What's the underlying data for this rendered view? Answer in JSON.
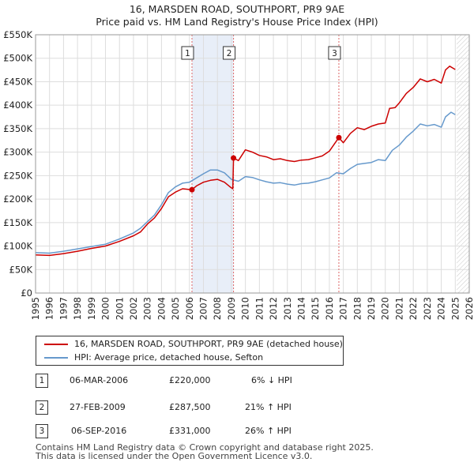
{
  "title_line1": "16, MARSDEN ROAD, SOUTHPORT, PR9 9AE",
  "title_line2": "Price paid vs. HM Land Registry's House Price Index (HPI)",
  "colors": {
    "property": "#cc0000",
    "hpi": "#6699cc",
    "shade": "#e8eef8",
    "grid": "#dddddd",
    "marker_line": "#dd6666"
  },
  "chart_data": {
    "type": "line",
    "xlim": [
      1995,
      2026
    ],
    "ylim": [
      0,
      550000
    ],
    "y_ticks": [
      0,
      50000,
      100000,
      150000,
      200000,
      250000,
      300000,
      350000,
      400000,
      450000,
      500000,
      550000
    ],
    "y_tick_labels": [
      "£0",
      "£50K",
      "£100K",
      "£150K",
      "£200K",
      "£250K",
      "£300K",
      "£350K",
      "£400K",
      "£450K",
      "£500K",
      "£550K"
    ],
    "x_ticks": [
      1995,
      1996,
      1997,
      1998,
      1999,
      2000,
      2001,
      2002,
      2003,
      2004,
      2005,
      2006,
      2007,
      2008,
      2009,
      2010,
      2011,
      2012,
      2013,
      2014,
      2015,
      2016,
      2017,
      2018,
      2019,
      2020,
      2021,
      2022,
      2023,
      2024,
      2025,
      2026
    ],
    "x_tick_labels": [
      "1995",
      "1996",
      "1997",
      "1998",
      "1999",
      "2000",
      "2001",
      "2002",
      "2003",
      "2004",
      "2005",
      "2006",
      "2007",
      "2008",
      "2009",
      "2010",
      "2011",
      "2012",
      "2013",
      "2014",
      "2015",
      "2016",
      "2017",
      "2018",
      "2019",
      "2020",
      "2021",
      "2022",
      "2023",
      "2024",
      "2025",
      "2026"
    ],
    "shaded_ranges": [
      [
        2006.18,
        2009.15
      ]
    ],
    "future_start": 2025.1,
    "series": [
      {
        "name": "16, MARSDEN ROAD, SOUTHPORT, PR9 9AE (detached house)",
        "color": "#cc0000",
        "points": [
          [
            1995.0,
            81000
          ],
          [
            1996.0,
            80000
          ],
          [
            1997.0,
            84000
          ],
          [
            1998.0,
            89000
          ],
          [
            1999.0,
            95000
          ],
          [
            2000.0,
            100000
          ],
          [
            2001.0,
            110000
          ],
          [
            2002.0,
            122000
          ],
          [
            2002.5,
            130000
          ],
          [
            2003.0,
            147000
          ],
          [
            2003.5,
            160000
          ],
          [
            2004.0,
            180000
          ],
          [
            2004.5,
            205000
          ],
          [
            2005.0,
            215000
          ],
          [
            2005.5,
            222000
          ],
          [
            2006.18,
            220000
          ],
          [
            2006.5,
            228000
          ],
          [
            2007.0,
            236000
          ],
          [
            2007.5,
            240000
          ],
          [
            2008.0,
            242000
          ],
          [
            2008.5,
            236000
          ],
          [
            2008.9,
            226000
          ],
          [
            2009.1,
            222000
          ],
          [
            2009.15,
            287500
          ],
          [
            2009.5,
            282000
          ],
          [
            2010.0,
            305000
          ],
          [
            2010.5,
            300000
          ],
          [
            2011.0,
            293000
          ],
          [
            2011.5,
            290000
          ],
          [
            2012.0,
            284000
          ],
          [
            2012.5,
            286000
          ],
          [
            2013.0,
            282000
          ],
          [
            2013.5,
            280000
          ],
          [
            2014.0,
            283000
          ],
          [
            2014.5,
            284000
          ],
          [
            2015.0,
            288000
          ],
          [
            2015.5,
            292000
          ],
          [
            2016.0,
            302000
          ],
          [
            2016.68,
            331000
          ],
          [
            2017.0,
            320000
          ],
          [
            2017.5,
            340000
          ],
          [
            2018.0,
            352000
          ],
          [
            2018.5,
            348000
          ],
          [
            2019.0,
            355000
          ],
          [
            2019.5,
            360000
          ],
          [
            2020.0,
            362000
          ],
          [
            2020.3,
            393000
          ],
          [
            2020.7,
            395000
          ],
          [
            2021.0,
            405000
          ],
          [
            2021.5,
            425000
          ],
          [
            2022.0,
            438000
          ],
          [
            2022.5,
            456000
          ],
          [
            2023.0,
            450000
          ],
          [
            2023.5,
            455000
          ],
          [
            2024.0,
            447000
          ],
          [
            2024.3,
            475000
          ],
          [
            2024.6,
            483000
          ],
          [
            2025.0,
            476000
          ]
        ]
      },
      {
        "name": "HPI: Average price, detached house, Sefton",
        "color": "#6699cc",
        "points": [
          [
            1995.0,
            86000
          ],
          [
            1996.0,
            85000
          ],
          [
            1997.0,
            89000
          ],
          [
            1998.0,
            94000
          ],
          [
            1999.0,
            99000
          ],
          [
            2000.0,
            104000
          ],
          [
            2001.0,
            115000
          ],
          [
            2002.0,
            128000
          ],
          [
            2002.5,
            138000
          ],
          [
            2003.0,
            152000
          ],
          [
            2003.5,
            166000
          ],
          [
            2004.0,
            188000
          ],
          [
            2004.5,
            214000
          ],
          [
            2005.0,
            226000
          ],
          [
            2005.5,
            234000
          ],
          [
            2006.0,
            236000
          ],
          [
            2006.5,
            245000
          ],
          [
            2007.0,
            254000
          ],
          [
            2007.5,
            262000
          ],
          [
            2008.0,
            262000
          ],
          [
            2008.5,
            256000
          ],
          [
            2009.0,
            242000
          ],
          [
            2009.5,
            238000
          ],
          [
            2010.0,
            248000
          ],
          [
            2010.5,
            246000
          ],
          [
            2011.0,
            241000
          ],
          [
            2011.5,
            237000
          ],
          [
            2012.0,
            234000
          ],
          [
            2012.5,
            235000
          ],
          [
            2013.0,
            232000
          ],
          [
            2013.5,
            230000
          ],
          [
            2014.0,
            233000
          ],
          [
            2014.5,
            234000
          ],
          [
            2015.0,
            237000
          ],
          [
            2015.5,
            241000
          ],
          [
            2016.0,
            245000
          ],
          [
            2016.5,
            256000
          ],
          [
            2017.0,
            254000
          ],
          [
            2017.5,
            265000
          ],
          [
            2018.0,
            274000
          ],
          [
            2018.5,
            276000
          ],
          [
            2019.0,
            278000
          ],
          [
            2019.5,
            284000
          ],
          [
            2020.0,
            282000
          ],
          [
            2020.5,
            304000
          ],
          [
            2021.0,
            315000
          ],
          [
            2021.5,
            332000
          ],
          [
            2022.0,
            345000
          ],
          [
            2022.5,
            360000
          ],
          [
            2023.0,
            356000
          ],
          [
            2023.5,
            359000
          ],
          [
            2024.0,
            353000
          ],
          [
            2024.3,
            375000
          ],
          [
            2024.7,
            385000
          ],
          [
            2025.0,
            380000
          ]
        ]
      }
    ],
    "sale_markers": [
      {
        "label": "1",
        "x": 2006.18,
        "y": 220000
      },
      {
        "label": "2",
        "x": 2009.15,
        "y": 287500
      },
      {
        "label": "3",
        "x": 2016.68,
        "y": 331000
      }
    ]
  },
  "legend": {
    "property": "16, MARSDEN ROAD, SOUTHPORT, PR9 9AE (detached house)",
    "hpi": "HPI: Average price, detached house, Sefton"
  },
  "transactions": [
    {
      "num": "1",
      "date": "06-MAR-2006",
      "price": "£220,000",
      "hpi": "6% ↓ HPI"
    },
    {
      "num": "2",
      "date": "27-FEB-2009",
      "price": "£287,500",
      "hpi": "21% ↑ HPI"
    },
    {
      "num": "3",
      "date": "06-SEP-2016",
      "price": "£331,000",
      "hpi": "26% ↑ HPI"
    }
  ],
  "footer_line1": "Contains HM Land Registry data © Crown copyright and database right 2025.",
  "footer_line2": "This data is licensed under the Open Government Licence v3.0."
}
